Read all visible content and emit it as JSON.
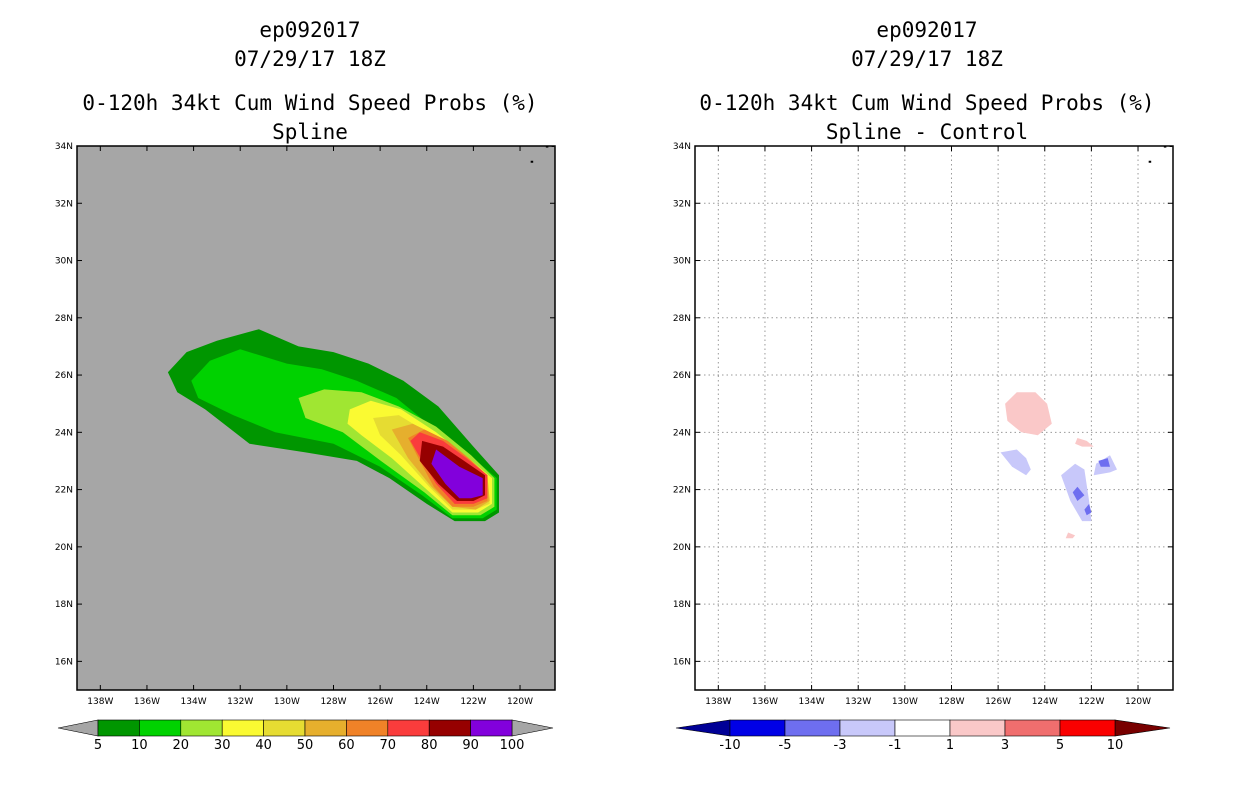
{
  "chart_data": [
    {
      "type": "filled-contour-map",
      "title_lines": [
        "ep092017",
        "07/29/17 18Z",
        "0-120h 34kt Cum Wind Speed Probs (%)",
        "Spline"
      ],
      "x_ticks": [
        "138W",
        "136W",
        "134W",
        "132W",
        "130W",
        "128W",
        "126W",
        "124W",
        "122W",
        "120W"
      ],
      "y_ticks": [
        "34N",
        "32N",
        "30N",
        "28N",
        "26N",
        "24N",
        "22N",
        "20N",
        "18N",
        "16N"
      ],
      "xlim": [
        -139,
        -118.5
      ],
      "ylim": [
        15,
        34
      ],
      "background_color": "#a6a6a6",
      "colorbar": {
        "labels": [
          "5",
          "10",
          "20",
          "30",
          "40",
          "50",
          "60",
          "70",
          "80",
          "90",
          "100"
        ],
        "colors": [
          "#009600",
          "#00d200",
          "#a0e632",
          "#fafa32",
          "#e6dc32",
          "#e6af2d",
          "#f08228",
          "#fa3c3c",
          "#960000",
          "#8200dc"
        ],
        "end_color": "#a6a6a6"
      },
      "contours": [
        {
          "level": 5,
          "color": "#009600",
          "points": [
            [
              -135.1,
              26.1
            ],
            [
              -134.3,
              26.8
            ],
            [
              -133,
              27.2
            ],
            [
              -131.2,
              27.6
            ],
            [
              -129.5,
              27
            ],
            [
              -128,
              26.8
            ],
            [
              -126.5,
              26.4
            ],
            [
              -125,
              25.8
            ],
            [
              -123.5,
              24.9
            ],
            [
              -122,
              23.5
            ],
            [
              -120.9,
              22.5
            ],
            [
              -120.9,
              21.2
            ],
            [
              -121.5,
              20.9
            ],
            [
              -122.8,
              20.9
            ],
            [
              -124,
              21.5
            ],
            [
              -125.6,
              22.4
            ],
            [
              -127,
              23
            ],
            [
              -129.2,
              23.3
            ],
            [
              -131.6,
              23.6
            ],
            [
              -133.5,
              24.8
            ],
            [
              -134.7,
              25.4
            ]
          ]
        },
        {
          "level": 10,
          "color": "#00d200",
          "points": [
            [
              -134.1,
              25.8
            ],
            [
              -133.3,
              26.5
            ],
            [
              -132,
              26.9
            ],
            [
              -130,
              26.4
            ],
            [
              -128.5,
              26.2
            ],
            [
              -127,
              25.8
            ],
            [
              -125.3,
              25.2
            ],
            [
              -123.8,
              24.2
            ],
            [
              -122.3,
              23.3
            ],
            [
              -121,
              22.4
            ],
            [
              -121,
              21.3
            ],
            [
              -121.6,
              21
            ],
            [
              -122.9,
              21
            ],
            [
              -124.2,
              21.8
            ],
            [
              -126,
              22.8
            ],
            [
              -128,
              23.6
            ],
            [
              -130.5,
              24
            ],
            [
              -132.3,
              24.6
            ],
            [
              -133.8,
              25.2
            ]
          ]
        },
        {
          "level": 20,
          "color": "#a0e632",
          "points": [
            [
              -129.5,
              25.2
            ],
            [
              -128.4,
              25.5
            ],
            [
              -126.8,
              25.4
            ],
            [
              -125.2,
              24.9
            ],
            [
              -123.6,
              24.2
            ],
            [
              -122.1,
              23.2
            ],
            [
              -121.1,
              22.4
            ],
            [
              -121.1,
              21.4
            ],
            [
              -121.7,
              21.1
            ],
            [
              -122.9,
              21.1
            ],
            [
              -124.1,
              21.9
            ],
            [
              -125.8,
              22.9
            ],
            [
              -127.6,
              24
            ],
            [
              -129.2,
              24.5
            ]
          ]
        },
        {
          "level": 30,
          "color": "#fafa32",
          "points": [
            [
              -127.3,
              24.8
            ],
            [
              -126.4,
              25.1
            ],
            [
              -125.1,
              24.8
            ],
            [
              -123.6,
              24
            ],
            [
              -122.2,
              23.1
            ],
            [
              -121.2,
              22.4
            ],
            [
              -121.2,
              21.5
            ],
            [
              -121.8,
              21.2
            ],
            [
              -122.9,
              21.2
            ],
            [
              -124,
              22
            ],
            [
              -125.5,
              23.1
            ],
            [
              -126.8,
              23.9
            ],
            [
              -127.4,
              24.3
            ]
          ]
        },
        {
          "level": 40,
          "color": "#e6dc32",
          "points": [
            [
              -126.3,
              24.5
            ],
            [
              -125.2,
              24.6
            ],
            [
              -124,
              24
            ],
            [
              -122.7,
              23.3
            ],
            [
              -121.4,
              22.5
            ],
            [
              -121.3,
              21.5
            ],
            [
              -121.9,
              21.3
            ],
            [
              -122.9,
              21.3
            ],
            [
              -123.9,
              22.1
            ],
            [
              -125.1,
              23.2
            ],
            [
              -126,
              23.9
            ]
          ]
        },
        {
          "level": 50,
          "color": "#e6af2d",
          "points": [
            [
              -125.5,
              24.1
            ],
            [
              -124.6,
              24.3
            ],
            [
              -123.6,
              23.9
            ],
            [
              -122.5,
              23.2
            ],
            [
              -121.4,
              22.5
            ],
            [
              -121.3,
              21.6
            ],
            [
              -121.9,
              21.3
            ],
            [
              -122.9,
              21.4
            ],
            [
              -123.8,
              22.1
            ],
            [
              -124.8,
              23.1
            ]
          ]
        },
        {
          "level": 60,
          "color": "#f08228",
          "points": [
            [
              -124.8,
              23.8
            ],
            [
              -124.1,
              24.1
            ],
            [
              -123.1,
              23.7
            ],
            [
              -122.2,
              23.1
            ],
            [
              -121.4,
              22.5
            ],
            [
              -121.4,
              21.6
            ],
            [
              -122,
              21.4
            ],
            [
              -122.9,
              21.4
            ],
            [
              -123.7,
              22.1
            ],
            [
              -124.3,
              23
            ]
          ]
        },
        {
          "level": 70,
          "color": "#fa3c3c",
          "points": [
            [
              -124.7,
              23.7
            ],
            [
              -124.3,
              24
            ],
            [
              -123.3,
              23.7
            ],
            [
              -122.3,
              23.1
            ],
            [
              -121.4,
              22.5
            ],
            [
              -121.4,
              21.7
            ],
            [
              -122,
              21.5
            ],
            [
              -122.8,
              21.5
            ],
            [
              -123.6,
              22.2
            ],
            [
              -124.2,
              23
            ]
          ]
        },
        {
          "level": 80,
          "color": "#960000",
          "points": [
            [
              -124.3,
              23
            ],
            [
              -124.2,
              23.7
            ],
            [
              -123.3,
              23.5
            ],
            [
              -122.4,
              23
            ],
            [
              -121.5,
              22.5
            ],
            [
              -121.5,
              21.8
            ],
            [
              -122,
              21.6
            ],
            [
              -122.7,
              21.6
            ],
            [
              -123.5,
              22.2
            ]
          ]
        },
        {
          "level": 90,
          "color": "#8200dc",
          "points": [
            [
              -123.8,
              22.9
            ],
            [
              -123.6,
              23.4
            ],
            [
              -122.6,
              22.8
            ],
            [
              -121.6,
              22.4
            ],
            [
              -121.6,
              21.8
            ],
            [
              -122.1,
              21.7
            ],
            [
              -122.6,
              21.7
            ],
            [
              -123.2,
              22.2
            ]
          ]
        }
      ]
    },
    {
      "type": "filled-contour-map",
      "title_lines": [
        "ep092017",
        "07/29/17 18Z",
        "0-120h 34kt Cum Wind Speed Probs (%)",
        "Spline - Control"
      ],
      "x_ticks": [
        "138W",
        "136W",
        "134W",
        "132W",
        "130W",
        "128W",
        "126W",
        "124W",
        "122W",
        "120W"
      ],
      "y_ticks": [
        "34N",
        "32N",
        "30N",
        "28N",
        "26N",
        "24N",
        "22N",
        "20N",
        "18N",
        "16N"
      ],
      "xlim": [
        -139,
        -118.5
      ],
      "ylim": [
        15,
        34
      ],
      "background_color": "#ffffff",
      "gridlines": true,
      "colorbar": {
        "labels": [
          "-10",
          "-5",
          "-3",
          "-1",
          "1",
          "3",
          "5",
          "10"
        ],
        "colors": [
          "#0000e6",
          "#6e6ef0",
          "#c8c8fa",
          "#ffffff",
          "#fac8c8",
          "#f06e6e",
          "#fa0000"
        ],
        "low_end_color": "#000096",
        "high_end_color": "#780000"
      },
      "contours": [
        {
          "level": 1,
          "color": "#fac8c8",
          "points": [
            [
              -125.6,
              24.4
            ],
            [
              -125.7,
              25
            ],
            [
              -125.2,
              25.4
            ],
            [
              -124.4,
              25.4
            ],
            [
              -123.9,
              25
            ],
            [
              -123.7,
              24.3
            ],
            [
              -124.3,
              23.9
            ],
            [
              -125,
              24
            ]
          ]
        },
        {
          "level": 1,
          "color": "#fac8c8",
          "points": [
            [
              -122.6,
              23.8
            ],
            [
              -122.2,
              23.7
            ],
            [
              -121.9,
              23.5
            ],
            [
              -122.4,
              23.5
            ],
            [
              -122.7,
              23.6
            ]
          ]
        },
        {
          "level": 1,
          "color": "#fac8c8",
          "points": [
            [
              -123,
              20.5
            ],
            [
              -122.7,
              20.4
            ],
            [
              -122.8,
              20.3
            ],
            [
              -123.1,
              20.3
            ]
          ]
        },
        {
          "level": -1,
          "color": "#c8c8fa",
          "points": [
            [
              -125.9,
              23.3
            ],
            [
              -125.2,
              23.4
            ],
            [
              -124.8,
              23.1
            ],
            [
              -124.6,
              22.7
            ],
            [
              -124.8,
              22.5
            ],
            [
              -125.4,
              22.8
            ]
          ]
        },
        {
          "level": -1,
          "color": "#c8c8fa",
          "points": [
            [
              -123.3,
              22.5
            ],
            [
              -122.7,
              22.9
            ],
            [
              -122.3,
              22.7
            ],
            [
              -122.1,
              21.6
            ],
            [
              -122,
              20.9
            ],
            [
              -122.4,
              20.9
            ],
            [
              -122.9,
              21.6
            ]
          ]
        },
        {
          "level": -1,
          "color": "#c8c8fa",
          "points": [
            [
              -121.8,
              22.9
            ],
            [
              -121.2,
              23.2
            ],
            [
              -120.9,
              22.7
            ],
            [
              -121.2,
              22.6
            ],
            [
              -121.9,
              22.5
            ]
          ]
        },
        {
          "level": -3,
          "color": "#6e6ef0",
          "points": [
            [
              -121.7,
              23
            ],
            [
              -121.3,
              23.1
            ],
            [
              -121.2,
              22.8
            ],
            [
              -121.6,
              22.8
            ]
          ]
        },
        {
          "level": -3,
          "color": "#6e6ef0",
          "points": [
            [
              -122.8,
              21.9
            ],
            [
              -122.6,
              22.1
            ],
            [
              -122.3,
              21.8
            ],
            [
              -122.6,
              21.6
            ]
          ]
        },
        {
          "level": -3,
          "color": "#6e6ef0",
          "points": [
            [
              -122.3,
              21.3
            ],
            [
              -122.1,
              21.5
            ],
            [
              -122,
              21.2
            ],
            [
              -122.2,
              21.1
            ]
          ]
        }
      ]
    }
  ]
}
